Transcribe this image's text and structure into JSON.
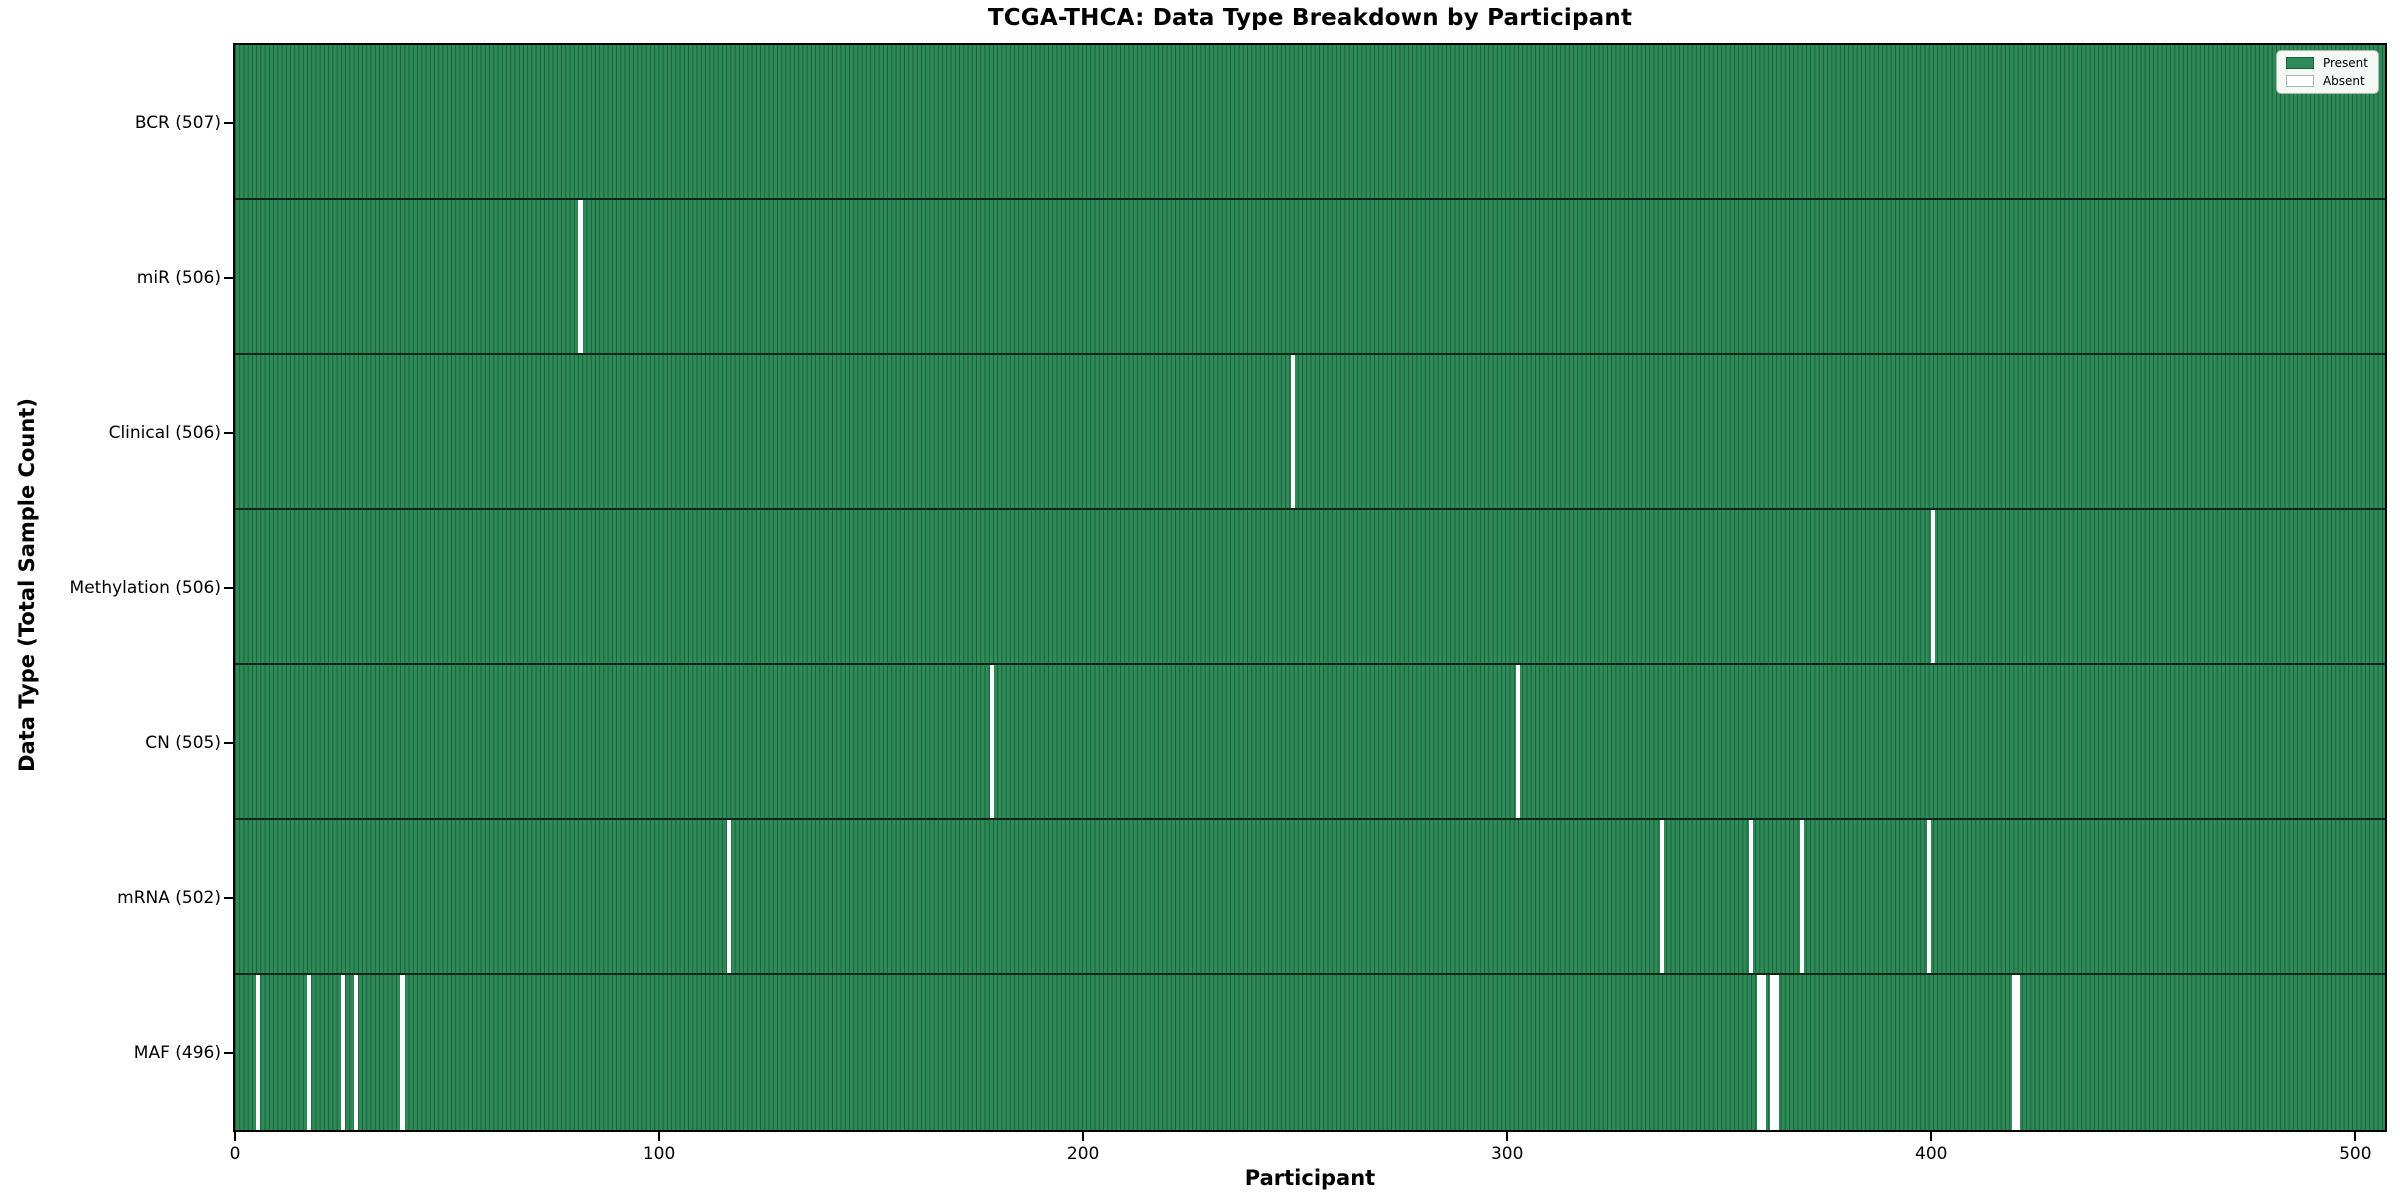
{
  "title": "TCGA-THCA: Data Type Breakdown by Participant",
  "legend": {
    "present_label": "Present",
    "absent_label": "Absent"
  },
  "colors": {
    "present": "#2e8b57",
    "present_edge": "#1b5e3c",
    "absent": "#ffffff",
    "row_divider": "#102418",
    "axis": "#000000",
    "legend_bg": "#f4f8f4",
    "legend_border": "#aab8aa"
  },
  "chart_data": {
    "type": "heatmap",
    "title": "TCGA-THCA: Data Type Breakdown by Participant",
    "xlabel": "Participant",
    "ylabel": "Data Type (Total Sample Count)",
    "n_participants": 507,
    "xlim": [
      0,
      507
    ],
    "x_ticks": [
      0,
      100,
      200,
      300,
      400,
      500
    ],
    "grid": false,
    "legend_position": "upper right",
    "legend_entries": [
      "Present",
      "Absent"
    ],
    "cell_values": {
      "present": 1,
      "absent": 0
    },
    "rows": [
      {
        "data_type": "bcr",
        "label": "BCR (507)",
        "total": 507,
        "absent_participants": []
      },
      {
        "data_type": "mir",
        "label": "miR (506)",
        "total": 506,
        "absent_participants": [
          81
        ]
      },
      {
        "data_type": "clinical",
        "label": "Clinical (506)",
        "total": 506,
        "absent_participants": [
          249
        ]
      },
      {
        "data_type": "methylation",
        "label": "Methylation (506)",
        "total": 506,
        "absent_participants": [
          400
        ]
      },
      {
        "data_type": "cn",
        "label": "CN (505)",
        "total": 505,
        "absent_participants": [
          178,
          302
        ]
      },
      {
        "data_type": "mrna",
        "label": "mRNA (502)",
        "total": 502,
        "absent_participants": [
          116,
          336,
          357,
          369,
          399
        ]
      },
      {
        "data_type": "maf",
        "label": "MAF (496)",
        "total": 496,
        "absent_participants": [
          5,
          17,
          25,
          28,
          39,
          359,
          360,
          362,
          363,
          419,
          420
        ]
      }
    ]
  }
}
